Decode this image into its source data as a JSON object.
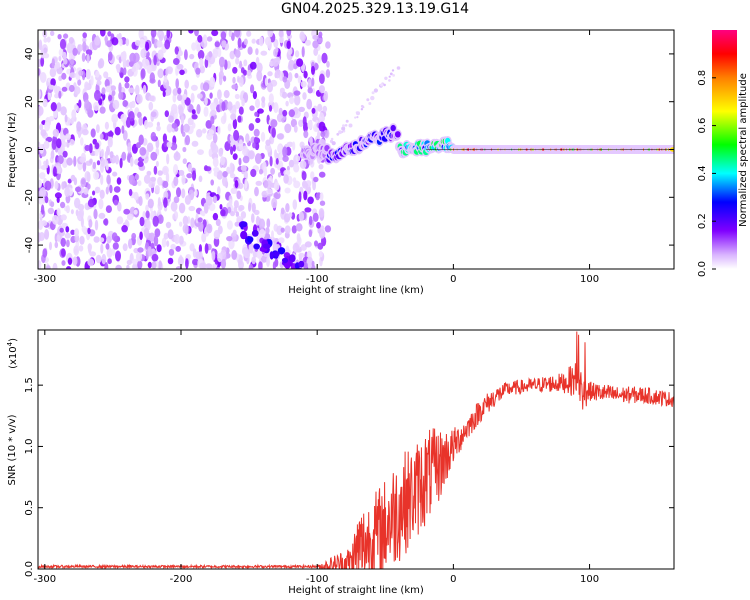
{
  "title": "GN04.2025.329.13.19.G14",
  "colors": {
    "snr_line": "#e8332a",
    "frame": "#000000"
  },
  "chart_data": [
    {
      "type": "heatmap",
      "xlabel": "Height of straight line (km)",
      "ylabel": "Frequency (Hz)",
      "xlim": [
        -305,
        162
      ],
      "ylim": [
        -50,
        50
      ],
      "x_ticks": [
        -300,
        -200,
        -100,
        0,
        100
      ],
      "y_ticks": [
        -40,
        -20,
        0,
        20,
        40
      ],
      "colorbar": {
        "label": "Normalized spectral amplitude",
        "range": [
          0,
          1
        ],
        "ticks": [
          0.0,
          0.2,
          0.4,
          0.6,
          0.8
        ],
        "tick_labels": [
          "0.0",
          "0.2",
          "0.4",
          "0.6",
          "0.8"
        ],
        "colormap": [
          "#ffffff",
          "#d9b3ff",
          "#8000ff",
          "#0000ff",
          "#00ffff",
          "#00ff00",
          "#ffff00",
          "#ff8000",
          "#ff0000",
          "#ff0080"
        ]
      },
      "noise_region_x": [
        -305,
        -92
      ],
      "line_segments": [
        {
          "x": [
            -110,
            -92
          ],
          "freq": [
            -2,
            0
          ],
          "amp": 0.2
        },
        {
          "x": [
            -92,
            -40
          ],
          "freq": [
            -3,
            8
          ],
          "amp": 0.35
        },
        {
          "x": [
            -40,
            0
          ],
          "freq": [
            0,
            2
          ],
          "amp": 0.55
        },
        {
          "x": [
            0,
            162
          ],
          "freq": [
            0,
            0
          ],
          "amp": 0.95
        }
      ],
      "faint_streak": {
        "x": [
          -90,
          -40
        ],
        "freq": [
          2,
          35
        ]
      },
      "lower_track": {
        "x": [
          -160,
          -110
        ],
        "freq": [
          -32,
          -50
        ]
      }
    },
    {
      "type": "line",
      "xlabel": "Height of straight line (km)",
      "ylabel": "SNR (10 * v/v)",
      "y_multiplier": "(x10",
      "y_multiplier_exp": "4",
      "xlim": [
        -305,
        162
      ],
      "ylim": [
        0,
        1.95
      ],
      "x_ticks": [
        -300,
        -200,
        -100,
        0,
        100
      ],
      "y_ticks": [
        0.0,
        0.5,
        1.0,
        1.5
      ],
      "y_tick_labels": [
        "0.0",
        "0.5",
        "1.0",
        "1.5"
      ],
      "series": [
        {
          "x": [
            -305,
            -200,
            -100,
            -75,
            -70,
            -60,
            -50,
            -40,
            -30,
            -20,
            -10,
            0,
            10,
            20,
            30,
            40,
            60,
            80,
            90,
            95,
            100,
            120,
            140,
            162
          ],
          "y": [
            0.02,
            0.02,
            0.02,
            0.05,
            0.15,
            0.25,
            0.35,
            0.5,
            0.6,
            0.75,
            0.85,
            1.0,
            1.15,
            1.3,
            1.4,
            1.47,
            1.5,
            1.52,
            1.55,
            1.45,
            1.45,
            1.42,
            1.42,
            1.38
          ],
          "noise": [
            0.01,
            0.01,
            0.01,
            0.15,
            0.35,
            0.35,
            0.4,
            0.45,
            0.4,
            0.4,
            0.3,
            0.15,
            0.1,
            0.1,
            0.08,
            0.06,
            0.06,
            0.08,
            0.15,
            0.18,
            0.08,
            0.07,
            0.07,
            0.06
          ]
        }
      ]
    }
  ]
}
